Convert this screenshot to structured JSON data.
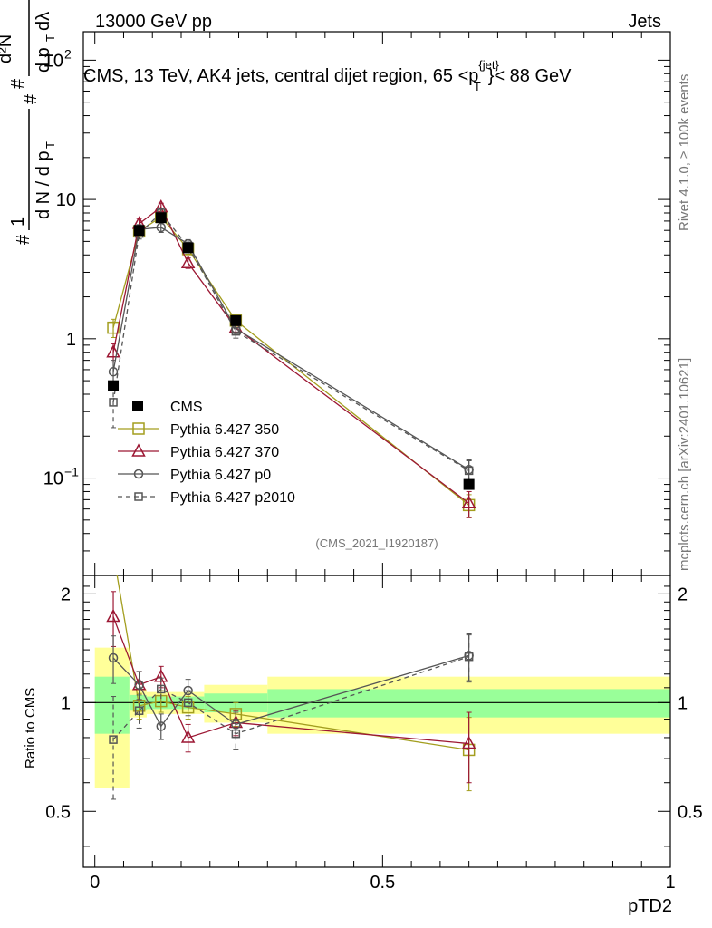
{
  "header": {
    "energy_label": "13000 GeV pp",
    "category_label": "Jets",
    "plot_title": "CMS, 13 TeV, AK4 jets, central dijet region, 65 <p",
    "plot_title_sup": "{jet}",
    "plot_title_sub": "T",
    "plot_title_end": "}< 88 GeV",
    "side_label_rivet": "Rivet 4.1.0, ≥ 100k events",
    "side_label_source": "mcplots.cern.ch [arXiv:2401.10621]",
    "analysis_id": "(CMS_2021_I1920187)"
  },
  "axes": {
    "y_label_main": "1/N dN/dp_T dλ (normalised)",
    "y_label_ratio": "Ratio to CMS",
    "x_label": "pTD2"
  },
  "colors": {
    "cms": "#000000",
    "p350": "#a39e1f",
    "p370": "#9c1733",
    "p0": "#555555",
    "p2010": "#555555",
    "band_inner": "#99ff99",
    "band_outer": "#ffff99"
  },
  "chart_data": {
    "type": "scatter",
    "main_panel": {
      "yscale": "log",
      "ylim": [
        0.02,
        160
      ],
      "xlim": [
        -0.02,
        1.0
      ],
      "y_ticks": [
        "10^-1",
        "1",
        "10",
        "10^2"
      ]
    },
    "ratio_panel": {
      "ylim": [
        0.35,
        2.25
      ],
      "xlim": [
        -0.02,
        1.0
      ],
      "y_ticks": [
        "0.5",
        "1",
        "2"
      ],
      "x_ticks": [
        "0",
        "0.5",
        "1"
      ]
    },
    "bins": [
      {
        "lo": 0.0,
        "hi": 0.06
      },
      {
        "lo": 0.06,
        "hi": 0.09
      },
      {
        "lo": 0.09,
        "hi": 0.14
      },
      {
        "lo": 0.14,
        "hi": 0.19
      },
      {
        "lo": 0.19,
        "hi": 0.3
      },
      {
        "lo": 0.3,
        "hi": 1.0
      }
    ],
    "x": [
      0.032,
      0.077,
      0.115,
      0.162,
      0.245,
      0.65
    ],
    "cms": {
      "name": "CMS",
      "values": [
        0.46,
        6.0,
        7.4,
        4.5,
        1.35,
        0.09
      ],
      "band_inner": [
        0.18,
        0.05,
        0.04,
        0.04,
        0.06,
        0.09
      ],
      "band_outer": [
        0.42,
        0.09,
        0.07,
        0.07,
        0.12,
        0.18
      ]
    },
    "series": [
      {
        "name": "Pythia 6.427 350",
        "key": "p350",
        "marker": "square-open",
        "line": "solid",
        "values": [
          1.2,
          5.9,
          7.5,
          4.4,
          1.35,
          0.064
        ],
        "errors": [
          0.18,
          0.5,
          0.5,
          0.35,
          0.1,
          0.012
        ],
        "ratio": [
          2.6,
          0.98,
          1.01,
          0.97,
          0.93,
          0.74
        ],
        "ratio_err": [
          0.25,
          0.08,
          0.07,
          0.07,
          0.07,
          0.17
        ]
      },
      {
        "name": "Pythia 6.427 370",
        "key": "p370",
        "marker": "triangle-open",
        "line": "solid",
        "values": [
          0.8,
          6.7,
          8.8,
          3.5,
          1.2,
          0.066
        ],
        "errors": [
          0.12,
          0.6,
          0.6,
          0.3,
          0.1,
          0.014
        ],
        "ratio": [
          1.73,
          1.12,
          1.18,
          0.8,
          0.88,
          0.77
        ],
        "ratio_err": [
          0.3,
          0.1,
          0.08,
          0.07,
          0.07,
          0.17
        ]
      },
      {
        "name": "Pythia 6.427 p0",
        "key": "p0",
        "marker": "circle-open",
        "line": "solid",
        "values": [
          0.58,
          6.1,
          6.3,
          4.8,
          1.18,
          0.115
        ],
        "errors": [
          0.12,
          0.5,
          0.5,
          0.35,
          0.1,
          0.02
        ],
        "ratio": [
          1.33,
          1.12,
          0.86,
          1.08,
          0.87,
          1.35
        ],
        "ratio_err": [
          0.2,
          0.1,
          0.07,
          0.08,
          0.07,
          0.2
        ]
      },
      {
        "name": "Pythia 6.427 p2010",
        "key": "p2010",
        "marker": "square-small-open",
        "line": "dashed",
        "values": [
          0.35,
          5.7,
          8.0,
          4.6,
          1.13,
          0.113
        ],
        "errors": [
          0.12,
          0.5,
          0.6,
          0.35,
          0.12,
          0.02
        ],
        "ratio": [
          0.79,
          0.95,
          1.09,
          1.0,
          0.82,
          1.34
        ],
        "ratio_err": [
          0.25,
          0.1,
          0.08,
          0.08,
          0.08,
          0.2
        ]
      }
    ]
  }
}
